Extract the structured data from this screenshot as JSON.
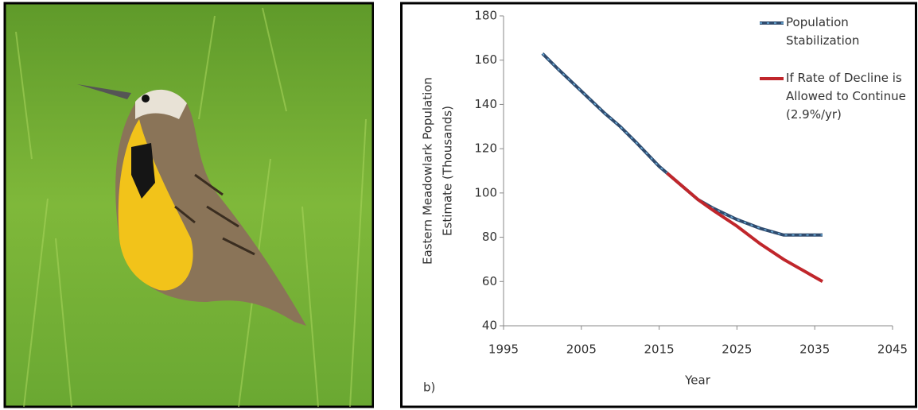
{
  "chart_data": {
    "type": "line",
    "panel_label": "b)",
    "xlabel": "Year",
    "ylabel_lines": [
      "Eastern Meadowlark Population",
      "Estimate (Thousands)"
    ],
    "xlim": [
      1995,
      2045
    ],
    "xticks": [
      1995,
      2005,
      2015,
      2025,
      2035,
      2045
    ],
    "ylim": [
      40,
      180
    ],
    "yticks": [
      40,
      60,
      80,
      100,
      120,
      140,
      160,
      180
    ],
    "legend": "top-right",
    "series": [
      {
        "name": "Population Stabilization",
        "color": "#2f4b6e",
        "dash_color": "#6fb3e0",
        "x": [
          2000,
          2002,
          2005,
          2008,
          2010,
          2012,
          2015,
          2016,
          2018,
          2020,
          2022,
          2025,
          2028,
          2031,
          2033,
          2036
        ],
        "values": [
          163,
          156,
          146,
          136,
          130,
          123,
          112,
          109,
          103,
          97,
          93,
          88,
          84,
          81,
          81,
          81
        ]
      },
      {
        "name": "If Rate of Decline is Allowed to Continue (2.9%/yr)",
        "color": "#c0262b",
        "x": [
          2016,
          2018,
          2020,
          2022,
          2025,
          2028,
          2031,
          2033,
          2036
        ],
        "values": [
          109,
          103,
          97,
          92,
          85,
          77,
          70,
          66,
          60
        ]
      }
    ]
  }
}
